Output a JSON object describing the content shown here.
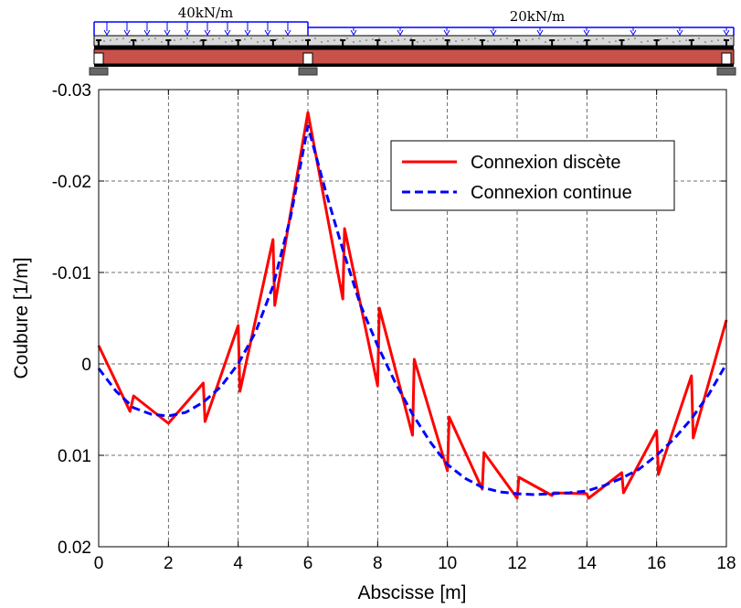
{
  "chart_data": {
    "type": "line",
    "xlabel": "Abscisse [m]",
    "ylabel": "Coubure [1/m]",
    "xlim": [
      0,
      18
    ],
    "ylim": [
      0.02,
      -0.03
    ],
    "y_reversed": true,
    "grid": true,
    "legend_position": "top-right",
    "x_ticks": [
      "0",
      "2",
      "4",
      "6",
      "8",
      "10",
      "12",
      "14",
      "16",
      "18"
    ],
    "y_ticks": [
      "-0.03",
      "-0.02",
      "-0.01",
      "0",
      "0.01",
      "0.02"
    ],
    "series": [
      {
        "name": "Connexion discète",
        "color": "#ff0000",
        "dash": "solid",
        "x": [
          0,
          0.9,
          1.0,
          2.0,
          3.0,
          3.05,
          4.0,
          4.05,
          5.0,
          5.05,
          6.0,
          7.0,
          7.05,
          8.0,
          8.05,
          9.0,
          9.05,
          10.0,
          10.05,
          11.0,
          11.05,
          12.0,
          12.05,
          13.0,
          13.05,
          14.0,
          14.05,
          15.0,
          15.05,
          16.0,
          16.05,
          17.0,
          17.05,
          18.0
        ],
        "y": [
          -0.002,
          0.0052,
          0.0035,
          0.0065,
          0.0021,
          0.0063,
          -0.0042,
          0.003,
          -0.0136,
          -0.0064,
          -0.0275,
          -0.0071,
          -0.0148,
          0.0024,
          -0.0061,
          0.0078,
          -0.0005,
          0.0117,
          0.0058,
          0.0137,
          0.0097,
          0.0147,
          0.0124,
          0.0144,
          0.0141,
          0.0142,
          0.0147,
          0.0119,
          0.0141,
          0.0073,
          0.0121,
          0.0013,
          0.0081,
          -0.0048
        ]
      },
      {
        "name": "Connexion continue",
        "color": "#0000ff",
        "dash": "dashed",
        "x": [
          0,
          0.5,
          1.0,
          1.5,
          2.0,
          2.5,
          3.0,
          3.5,
          4.0,
          4.5,
          5.0,
          5.5,
          6.0,
          6.5,
          7.0,
          7.5,
          8.0,
          8.5,
          9.0,
          9.5,
          10.0,
          10.5,
          11.0,
          11.5,
          12.0,
          12.5,
          13.0,
          13.5,
          14.0,
          14.5,
          15.0,
          15.5,
          16.0,
          16.5,
          17.0,
          17.5,
          18.0
        ],
        "y": [
          0.0005,
          0.003,
          0.0048,
          0.0055,
          0.0057,
          0.0053,
          0.0042,
          0.0025,
          0.0,
          -0.0035,
          -0.0085,
          -0.016,
          -0.026,
          -0.019,
          -0.0125,
          -0.0065,
          -0.002,
          0.002,
          0.0055,
          0.0085,
          0.011,
          0.0125,
          0.0135,
          0.014,
          0.0142,
          0.0143,
          0.0142,
          0.0141,
          0.0139,
          0.0133,
          0.0125,
          0.0115,
          0.01,
          0.0082,
          0.006,
          0.0033,
          0.0
        ]
      }
    ]
  },
  "beam": {
    "load_left_label": "40kN/m",
    "load_right_label": "20kN/m",
    "beam_color": "#c8524a",
    "slab_color": "#d9d9d9"
  }
}
